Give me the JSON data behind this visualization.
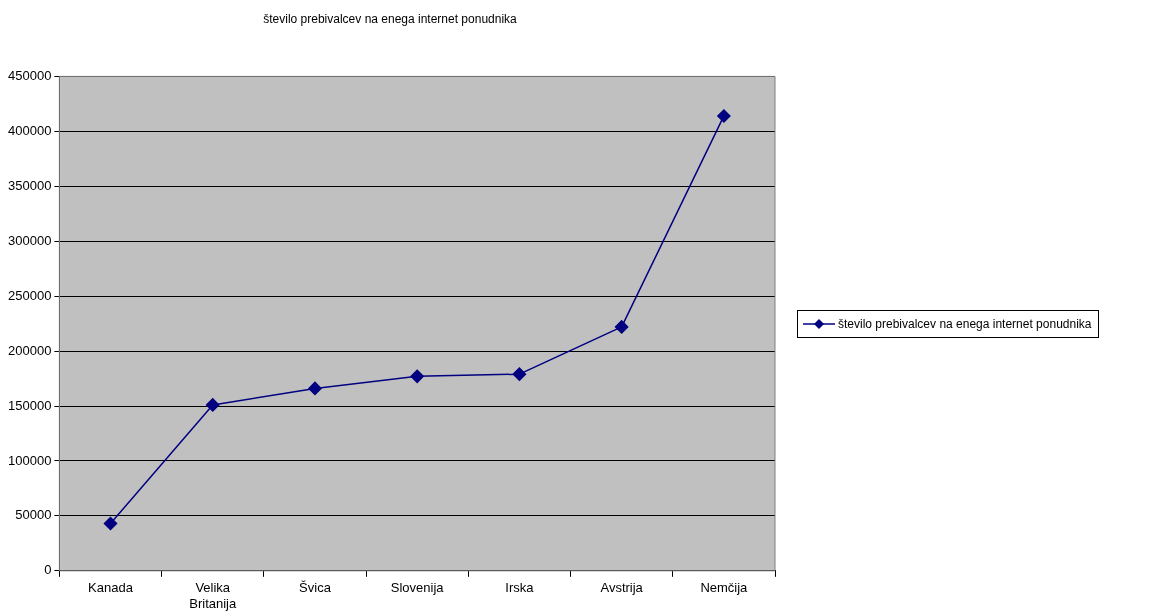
{
  "chart_data": {
    "type": "line",
    "title": "število prebivalcev na enega internet ponudnika",
    "categories": [
      "Kanada",
      "Velika Britanija",
      "Švica",
      "Slovenija",
      "Irska",
      "Avstrija",
      "Nemčija"
    ],
    "series": [
      {
        "name": "število prebivalcev na enega internet ponudnika",
        "color": "#000080",
        "values": [
          43000,
          151000,
          166000,
          177000,
          179000,
          222000,
          414000
        ]
      }
    ],
    "ylim": [
      0,
      450000
    ],
    "yticks": [
      0,
      50000,
      100000,
      150000,
      200000,
      250000,
      300000,
      350000,
      400000,
      450000
    ],
    "grid": "y",
    "legend": "right",
    "marker": "diamond",
    "line_style": "solid"
  }
}
